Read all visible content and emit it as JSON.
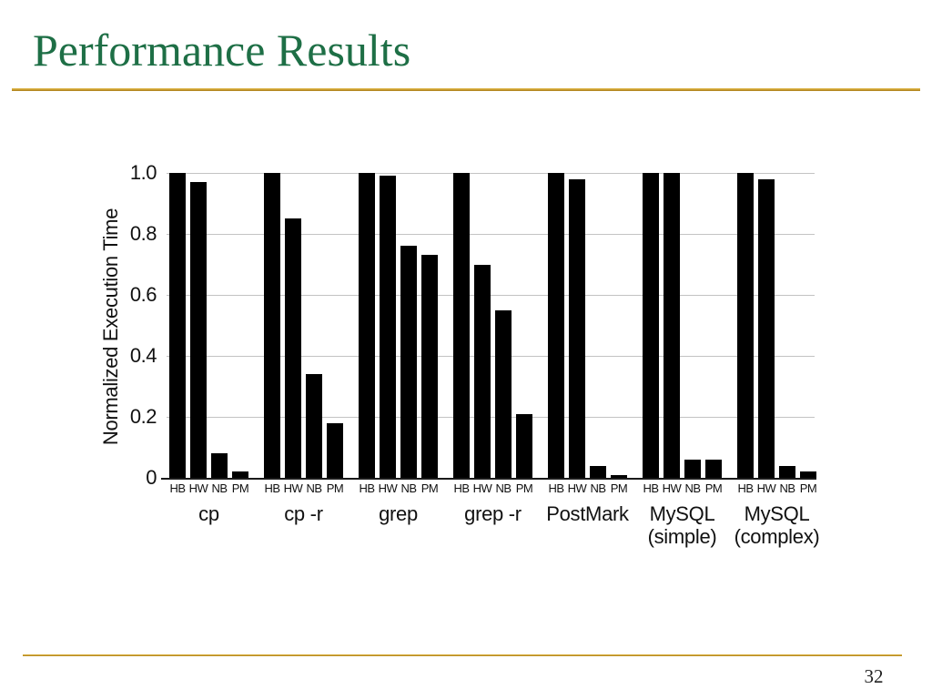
{
  "slide": {
    "title": "Performance Results",
    "page_number": "32"
  },
  "colors": {
    "title_green": "#1E6F46",
    "rule_gold": "#C79A2E",
    "bar_black": "#000000",
    "gridline_gray": "#C3C3C3"
  },
  "chart_data": {
    "type": "bar",
    "title": "",
    "xlabel": "",
    "ylabel": "Normalized Execution Time",
    "ylim": [
      0,
      1.0
    ],
    "yticks": [
      0,
      0.2,
      0.4,
      0.6,
      0.8,
      1.0
    ],
    "ytick_labels": [
      "0",
      "0.2",
      "0.4",
      "0.6",
      "0.8",
      "1.0"
    ],
    "grid": true,
    "legend": false,
    "bar_color": "#000000",
    "categories": [
      "cp",
      "cp -r",
      "grep",
      "grep -r",
      "PostMark",
      "MySQL (simple)",
      "MySQL (complex)"
    ],
    "category_lines": [
      [
        "cp"
      ],
      [
        "cp -r"
      ],
      [
        "grep"
      ],
      [
        "grep -r"
      ],
      [
        "PostMark"
      ],
      [
        "MySQL",
        "(simple)"
      ],
      [
        "MySQL",
        "(complex)"
      ]
    ],
    "series_labels": [
      "HB",
      "HW",
      "NB",
      "PM"
    ],
    "series": [
      {
        "name": "HB",
        "values": [
          1.0,
          1.0,
          1.0,
          1.0,
          1.0,
          1.0,
          1.0
        ]
      },
      {
        "name": "HW",
        "values": [
          0.97,
          0.85,
          0.99,
          0.7,
          0.98,
          1.0,
          0.98
        ]
      },
      {
        "name": "NB",
        "values": [
          0.08,
          0.34,
          0.76,
          0.55,
          0.04,
          0.06,
          0.04
        ]
      },
      {
        "name": "PM",
        "values": [
          0.02,
          0.18,
          0.73,
          0.21,
          0.01,
          0.06,
          0.02
        ]
      }
    ]
  }
}
